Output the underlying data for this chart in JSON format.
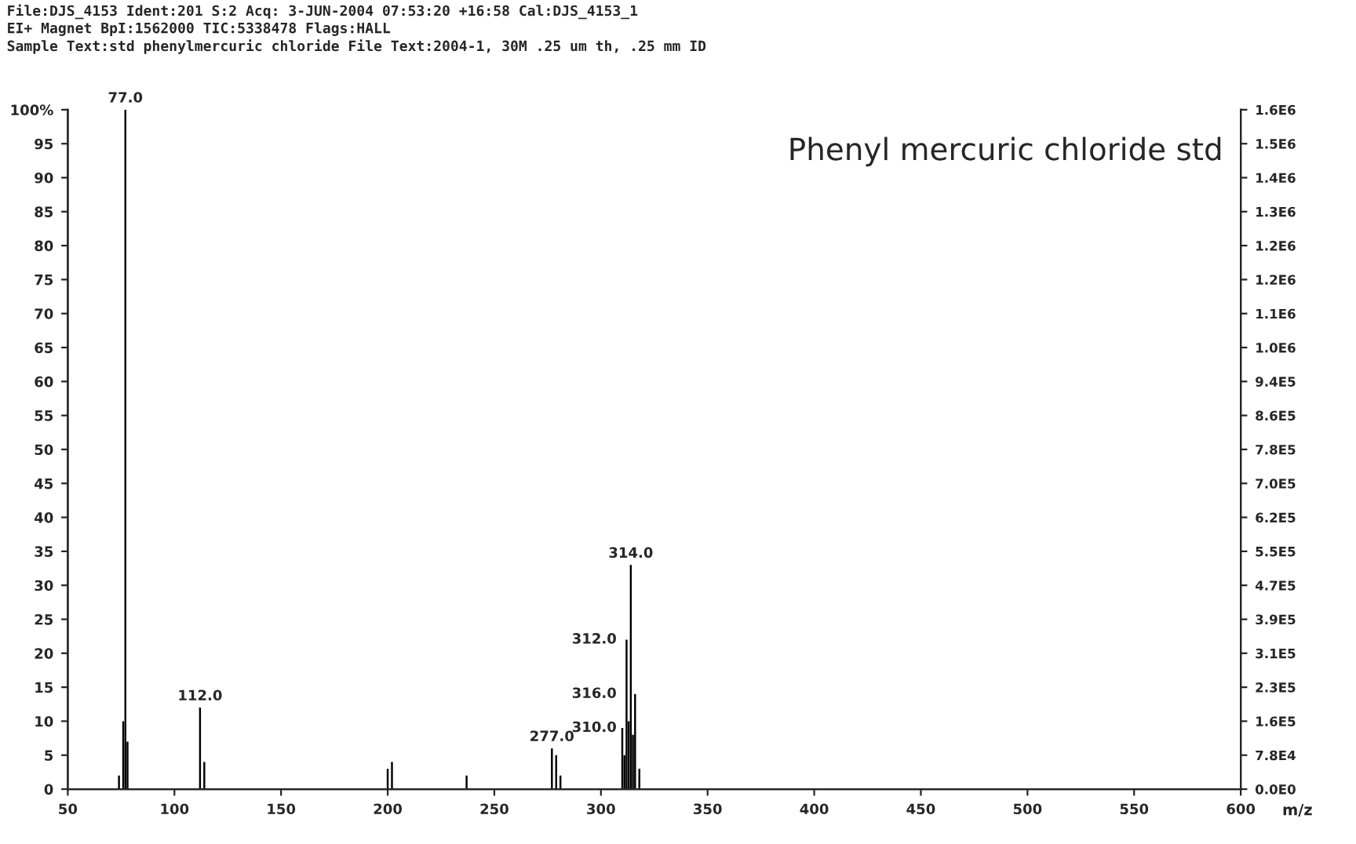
{
  "chart_data": {
    "type": "bar",
    "title": "File:DJS_4153 Ident:201 S:2 Acq: 3-JUN-2004 07:53:20 +16:58 Cal:DJS_4153_1\nEI+ Magnet BpI:1562000 TIC:5338478 Flags:HALL\nSample Text:std phenylmercuric chloride File Text:2004-1, 30M .25 um th, .25 mm ID",
    "xlabel": "m/z",
    "x": [
      74,
      76,
      77,
      78,
      112,
      114,
      200,
      202,
      237,
      277,
      279,
      281,
      310,
      311,
      312,
      313,
      314,
      315,
      316,
      318
    ],
    "values": [
      2,
      10,
      100,
      7,
      12,
      4,
      3,
      4,
      2,
      6,
      5,
      2,
      9,
      5,
      22,
      10,
      33,
      8,
      14,
      3
    ],
    "color": "#000000",
    "xlim": [
      50,
      600
    ],
    "xticks": [
      50,
      100,
      150,
      200,
      250,
      300,
      350,
      400,
      450,
      500,
      550,
      600
    ],
    "ylim": [
      0,
      100
    ],
    "yticks": [
      0,
      5,
      10,
      15,
      20,
      25,
      30,
      35,
      40,
      45,
      50,
      55,
      60,
      65,
      70,
      75,
      80,
      85,
      90,
      95,
      {
        "value": 100,
        "label": "100%"
      }
    ],
    "y2lim": [
      0,
      1562000
    ],
    "y2ticks": [
      {
        "value": 0,
        "label": "0.0E0"
      },
      {
        "value": 78100,
        "label": "7.8E4"
      },
      {
        "value": 156200,
        "label": "1.6E5"
      },
      {
        "value": 234300,
        "label": "2.3E5"
      },
      {
        "value": 312400,
        "label": "3.1E5"
      },
      {
        "value": 390500,
        "label": "3.9E5"
      },
      {
        "value": 468600,
        "label": "4.7E5"
      },
      {
        "value": 546700,
        "label": "5.5E5"
      },
      {
        "value": 624800,
        "label": "6.2E5"
      },
      {
        "value": 702900,
        "label": "7.0E5"
      },
      {
        "value": 781000,
        "label": "7.8E5"
      },
      {
        "value": 859100,
        "label": "8.6E5"
      },
      {
        "value": 937200,
        "label": "9.4E5"
      },
      {
        "value": 1015300,
        "label": "1.0E6"
      },
      {
        "value": 1093400,
        "label": "1.1E6"
      },
      {
        "value": 1171500,
        "label": "1.2E6"
      },
      {
        "value": 1249600,
        "label": "1.2E6"
      },
      {
        "value": 1327700,
        "label": "1.3E6"
      },
      {
        "value": 1405800,
        "label": "1.4E6"
      },
      {
        "value": 1483900,
        "label": "1.5E6"
      },
      {
        "value": 1562000,
        "label": "1.6E6"
      }
    ],
    "annotations": [
      "Phenyl mercuric chloride std",
      {
        "text": "77.0",
        "x": 77,
        "y": 100
      },
      {
        "text": "112.0",
        "x": 112,
        "y": 12
      },
      {
        "text": "277.0",
        "x": 277,
        "y": 6
      },
      {
        "text": "310.0",
        "x": 310,
        "y": 9
      },
      {
        "text": "312.0",
        "x": 312,
        "y": 22
      },
      {
        "text": "314.0",
        "x": 314,
        "y": 33
      },
      {
        "text": "316.0",
        "x": 316,
        "y": 14
      }
    ],
    "grid": false
  }
}
